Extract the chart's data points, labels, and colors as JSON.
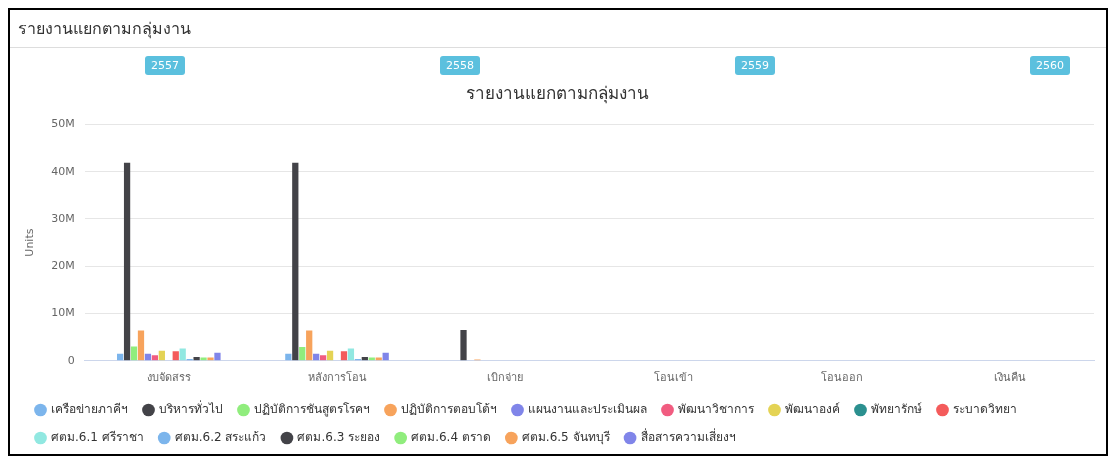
{
  "chart_data": {
    "type": "bar",
    "title": "รายงานแยกตามกลุ่มงาน",
    "ylabel": "Units",
    "annotations": [
      "รายงานแยกตามกลุ่มงาน",
      "2557",
      "2558",
      "2559",
      "2560"
    ],
    "categories": [
      "งบจัดสรร",
      "หลังการโอน",
      "เบิกจ่าย",
      "โอนเข้า",
      "โอนออก",
      "เงินคืน"
    ],
    "ylim": [
      0,
      50000000
    ],
    "yticks": [
      0,
      {
        "value": 10000000,
        "label": "10M"
      },
      {
        "value": 20000000,
        "label": "20M"
      },
      {
        "value": 30000000,
        "label": "30M"
      },
      {
        "value": 40000000,
        "label": "40M"
      },
      {
        "value": 50000000,
        "label": "50M"
      }
    ],
    "grid": "y",
    "legend": "bottom",
    "series": [
      {
        "name": "เครือข่ายภาคีฯ",
        "color": "#7cb5ec",
        "values": [
          1500000,
          1500000,
          0,
          0,
          0,
          0
        ]
      },
      {
        "name": "บริหารทั่วไป",
        "color": "#434348",
        "values": [
          41900000,
          41900000,
          6500000,
          0,
          0,
          0
        ]
      },
      {
        "name": "ปฏิบัติการชันสูตรโรคฯ",
        "color": "#90ed7d",
        "values": [
          3000000,
          2900000,
          0,
          0,
          0,
          0
        ]
      },
      {
        "name": "ปฏิบัติการตอบโต้ฯ",
        "color": "#f7a35c",
        "values": [
          6400000,
          6400000,
          300000,
          0,
          0,
          0
        ]
      },
      {
        "name": "แผนงานและประเมินผล",
        "color": "#8085e9",
        "values": [
          1500000,
          1500000,
          0,
          0,
          0,
          0
        ]
      },
      {
        "name": "พัฒนาวิชาการ",
        "color": "#f15c80",
        "values": [
          1200000,
          1200000,
          0,
          0,
          0,
          0
        ]
      },
      {
        "name": "พัฒนาองค์",
        "color": "#e4d354",
        "values": [
          2100000,
          2100000,
          0,
          0,
          0,
          0
        ]
      },
      {
        "name": "พัทยารักษ์",
        "color": "#2b908f",
        "values": [
          0,
          0,
          0,
          0,
          0,
          0
        ]
      },
      {
        "name": "ระบาดวิทยา",
        "color": "#f45b5b",
        "values": [
          2000000,
          2000000,
          null,
          0,
          0,
          0
        ]
      },
      {
        "name": "ศตม.6.1 ศรีราชา",
        "color": "#91e8e1",
        "values": [
          2600000,
          2600000,
          0,
          0,
          0,
          0
        ]
      },
      {
        "name": "ศตม.6.2 สระแก้ว",
        "color": "#7cb5ec",
        "values": [
          400000,
          400000,
          0,
          0,
          0,
          0
        ]
      },
      {
        "name": "ศตม.6.3 ระยอง",
        "color": "#434348",
        "values": [
          800000,
          800000,
          0,
          0,
          0,
          0
        ]
      },
      {
        "name": "ศตม.6.4 ตราด",
        "color": "#90ed7d",
        "values": [
          700000,
          700000,
          0,
          0,
          0,
          0
        ]
      },
      {
        "name": "ศตม.6.5 จันทบุรี",
        "color": "#f7a35c",
        "values": [
          700000,
          700000,
          0,
          0,
          0,
          0
        ]
      },
      {
        "name": "สื่อสารความเสี่ยงฯ",
        "color": "#8085e9",
        "values": [
          1700000,
          1700000,
          0,
          0,
          0,
          0
        ]
      }
    ]
  }
}
